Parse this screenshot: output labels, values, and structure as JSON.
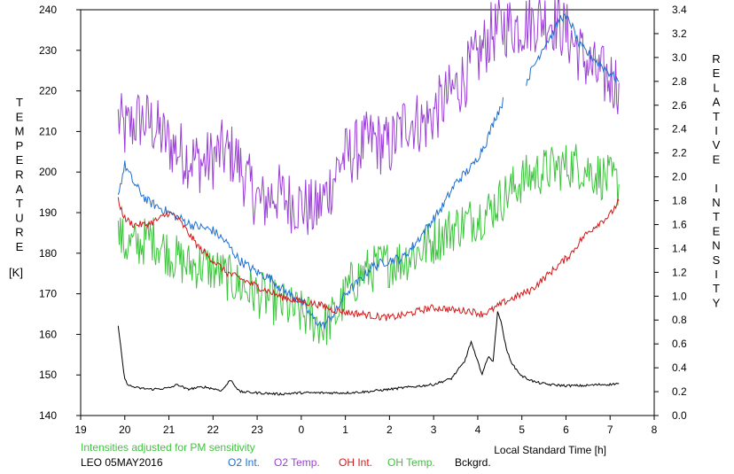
{
  "chart_data": {
    "type": "line",
    "title": "",
    "xlabel": "Local Standard Time [h]",
    "ylabel_left": "TEMPERATURE",
    "ylabel_left_unit": "[K]",
    "ylabel_right": "RELATIVE INTENSITY",
    "x_tick_labels": [
      "19",
      "20",
      "21",
      "22",
      "23",
      "0",
      "1",
      "2",
      "3",
      "4",
      "5",
      "6",
      "7",
      "8"
    ],
    "y_left_ticks": [
      140,
      150,
      160,
      170,
      180,
      190,
      200,
      210,
      220,
      230,
      240
    ],
    "y_right_ticks": [
      "0.0",
      "0.2",
      "0.4",
      "0.6",
      "0.8",
      "1.0",
      "1.2",
      "1.4",
      "1.6",
      "1.8",
      "2.0",
      "2.2",
      "2.4",
      "2.6",
      "2.8",
      "3.0",
      "3.2",
      "3.4"
    ],
    "xlim": [
      19,
      32
    ],
    "ylim_left": [
      140,
      240
    ],
    "ylim_right": [
      0,
      3.4
    ],
    "grid": false,
    "note": "Intensities adjusted for PM sensitivity",
    "station": "LEO 05MAY2016",
    "series": [
      {
        "name": "O2 Int.",
        "axis": "right",
        "color": "#1e6fd0",
        "noise": 0.04,
        "x": [
          19.85,
          20.0,
          20.2,
          20.5,
          21.0,
          21.5,
          22.0,
          22.3,
          22.6,
          23.0,
          23.3,
          23.6,
          24.0,
          24.3,
          24.5,
          24.8,
          25.0,
          25.3,
          25.6,
          26.0,
          26.3,
          26.6,
          26.9,
          27.2,
          27.5,
          27.9,
          28.2,
          28.4,
          28.6,
          28.8,
          29.1,
          29.3,
          29.5,
          29.7,
          29.9,
          30.1,
          30.3,
          30.6,
          30.9,
          31.2
        ],
        "y": [
          1.85,
          2.1,
          1.95,
          1.8,
          1.7,
          1.6,
          1.55,
          1.45,
          1.3,
          1.2,
          1.15,
          1.05,
          0.95,
          0.8,
          0.75,
          0.88,
          1.02,
          1.12,
          1.25,
          1.3,
          1.32,
          1.45,
          1.6,
          1.75,
          1.95,
          2.1,
          2.3,
          2.5,
          2.65,
          null,
          2.8,
          2.95,
          3.1,
          3.2,
          3.35,
          3.3,
          3.1,
          3.0,
          2.9,
          2.8
        ]
      },
      {
        "name": "O2 Temp.",
        "axis": "left",
        "color": "#9a3fd6",
        "noise": 8,
        "x": [
          19.85,
          20.0,
          20.3,
          20.6,
          21.0,
          21.4,
          21.8,
          22.2,
          22.5,
          22.8,
          23.1,
          23.4,
          23.7,
          24.0,
          24.3,
          24.6,
          24.9,
          25.2,
          25.6,
          26.0,
          26.4,
          26.8,
          27.2,
          27.6,
          28.0,
          28.3,
          28.6,
          28.9,
          29.2,
          29.5,
          29.8,
          30.1,
          30.4,
          30.7,
          31.0,
          31.2
        ],
        "y": [
          213,
          210,
          213,
          212,
          207,
          204,
          202,
          205,
          204,
          197,
          192,
          195,
          193,
          192,
          190,
          195,
          203,
          205,
          208,
          206,
          213,
          212,
          217,
          222,
          228,
          234,
          236,
          236,
          237,
          238,
          237,
          233,
          228,
          224,
          223,
          222
        ]
      },
      {
        "name": "OH Int.",
        "axis": "right",
        "color": "#d01a1a",
        "noise": 0.03,
        "x": [
          19.85,
          20.0,
          20.2,
          20.5,
          20.8,
          21.0,
          21.2,
          21.4,
          21.7,
          22.0,
          22.3,
          22.6,
          22.9,
          23.2,
          23.5,
          23.8,
          24.1,
          24.4,
          24.6,
          24.8,
          25.1,
          25.4,
          25.7,
          26.0,
          26.3,
          26.6,
          26.9,
          27.2,
          27.5,
          27.8,
          28.1,
          28.3,
          28.6,
          28.9,
          29.2,
          29.5,
          29.8,
          30.1,
          30.4,
          30.7,
          31.0,
          31.2
        ],
        "y": [
          1.8,
          1.65,
          1.6,
          1.6,
          1.65,
          1.7,
          1.65,
          1.55,
          1.4,
          1.3,
          1.2,
          1.15,
          1.1,
          1.05,
          1.0,
          0.97,
          0.95,
          0.93,
          0.9,
          0.88,
          0.86,
          0.85,
          0.83,
          0.82,
          0.84,
          0.87,
          0.9,
          0.9,
          0.88,
          0.88,
          0.85,
          0.88,
          0.95,
          1.0,
          1.05,
          1.15,
          1.25,
          1.35,
          1.5,
          1.6,
          1.68,
          1.8
        ]
      },
      {
        "name": "OH Temp.",
        "axis": "left",
        "color": "#3cc43c",
        "noise": 6,
        "x": [
          19.85,
          20.0,
          20.3,
          20.6,
          21.0,
          21.4,
          21.8,
          22.2,
          22.6,
          23.0,
          23.4,
          23.8,
          24.2,
          24.5,
          24.8,
          25.1,
          25.4,
          25.8,
          26.2,
          26.6,
          27.0,
          27.4,
          27.8,
          28.2,
          28.6,
          29.0,
          29.4,
          29.8,
          30.2,
          30.6,
          31.0,
          31.2
        ],
        "y": [
          185,
          182,
          182,
          184,
          180,
          177,
          177,
          175,
          172,
          170,
          168,
          166,
          164,
          162,
          165,
          172,
          175,
          177,
          178,
          180,
          183,
          186,
          188,
          190,
          194,
          198,
          200,
          201,
          202,
          200,
          198,
          197
        ]
      },
      {
        "name": "Bckgrd.",
        "axis": "right",
        "color": "#000000",
        "noise": 0.01,
        "x": [
          19.85,
          19.93,
          20.0,
          20.1,
          20.3,
          20.6,
          21.0,
          21.2,
          21.4,
          21.8,
          22.2,
          22.4,
          22.6,
          23.0,
          23.5,
          24.0,
          24.5,
          25.0,
          25.5,
          26.0,
          26.5,
          27.0,
          27.4,
          27.7,
          27.85,
          27.95,
          28.1,
          28.25,
          28.35,
          28.45,
          28.55,
          28.65,
          28.8,
          29.0,
          29.3,
          29.6,
          30.0,
          30.4,
          30.8,
          31.0,
          31.2
        ],
        "y": [
          0.75,
          0.5,
          0.3,
          0.25,
          0.23,
          0.22,
          0.23,
          0.26,
          0.22,
          0.24,
          0.21,
          0.3,
          0.2,
          0.19,
          0.18,
          0.19,
          0.19,
          0.19,
          0.2,
          0.22,
          0.24,
          0.26,
          0.31,
          0.45,
          0.62,
          0.5,
          0.35,
          0.5,
          0.45,
          0.88,
          0.75,
          0.55,
          0.42,
          0.33,
          0.28,
          0.26,
          0.25,
          0.25,
          0.26,
          0.26,
          0.27
        ]
      }
    ]
  }
}
